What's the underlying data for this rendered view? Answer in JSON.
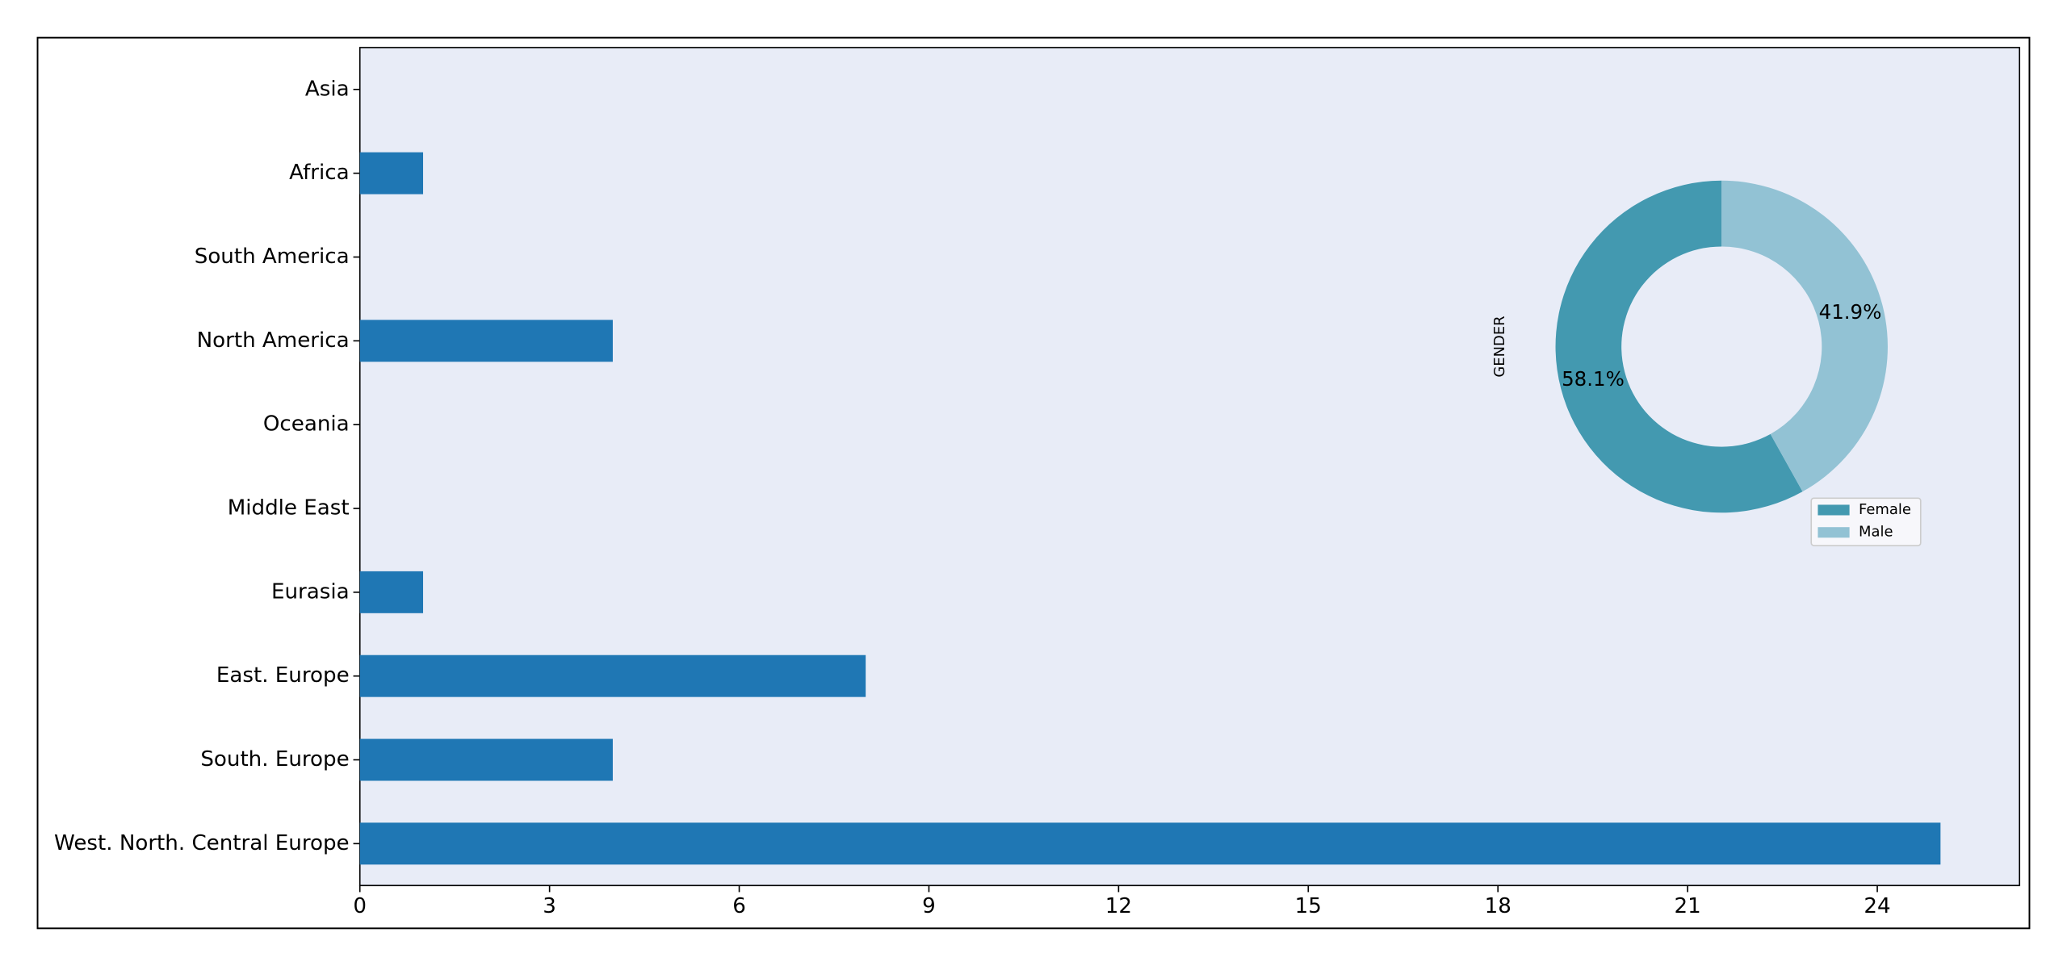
{
  "chart_data": [
    {
      "type": "barh",
      "categories": [
        "Asia",
        "Africa",
        "South America",
        "North America",
        "Oceania",
        "Middle East",
        "Eurasia",
        "East. Europe",
        "South. Europe",
        "West. North. Central Europe"
      ],
      "values": [
        0,
        1,
        0,
        4,
        0,
        0,
        1,
        8,
        4,
        25
      ],
      "color": "#1f77b4",
      "xlim": [
        0,
        26.25
      ],
      "xticks": [
        0,
        3,
        6,
        9,
        12,
        15,
        18,
        21,
        24
      ]
    },
    {
      "type": "pie",
      "ylabel": "GENDER",
      "categories": [
        "Female",
        "Male"
      ],
      "values": [
        58.1,
        41.9
      ],
      "value_labels": [
        "58.1%",
        "41.9%"
      ],
      "colors": [
        "#4399b0",
        "#92c2d4"
      ],
      "donut": true,
      "legend": "lower right"
    }
  ]
}
